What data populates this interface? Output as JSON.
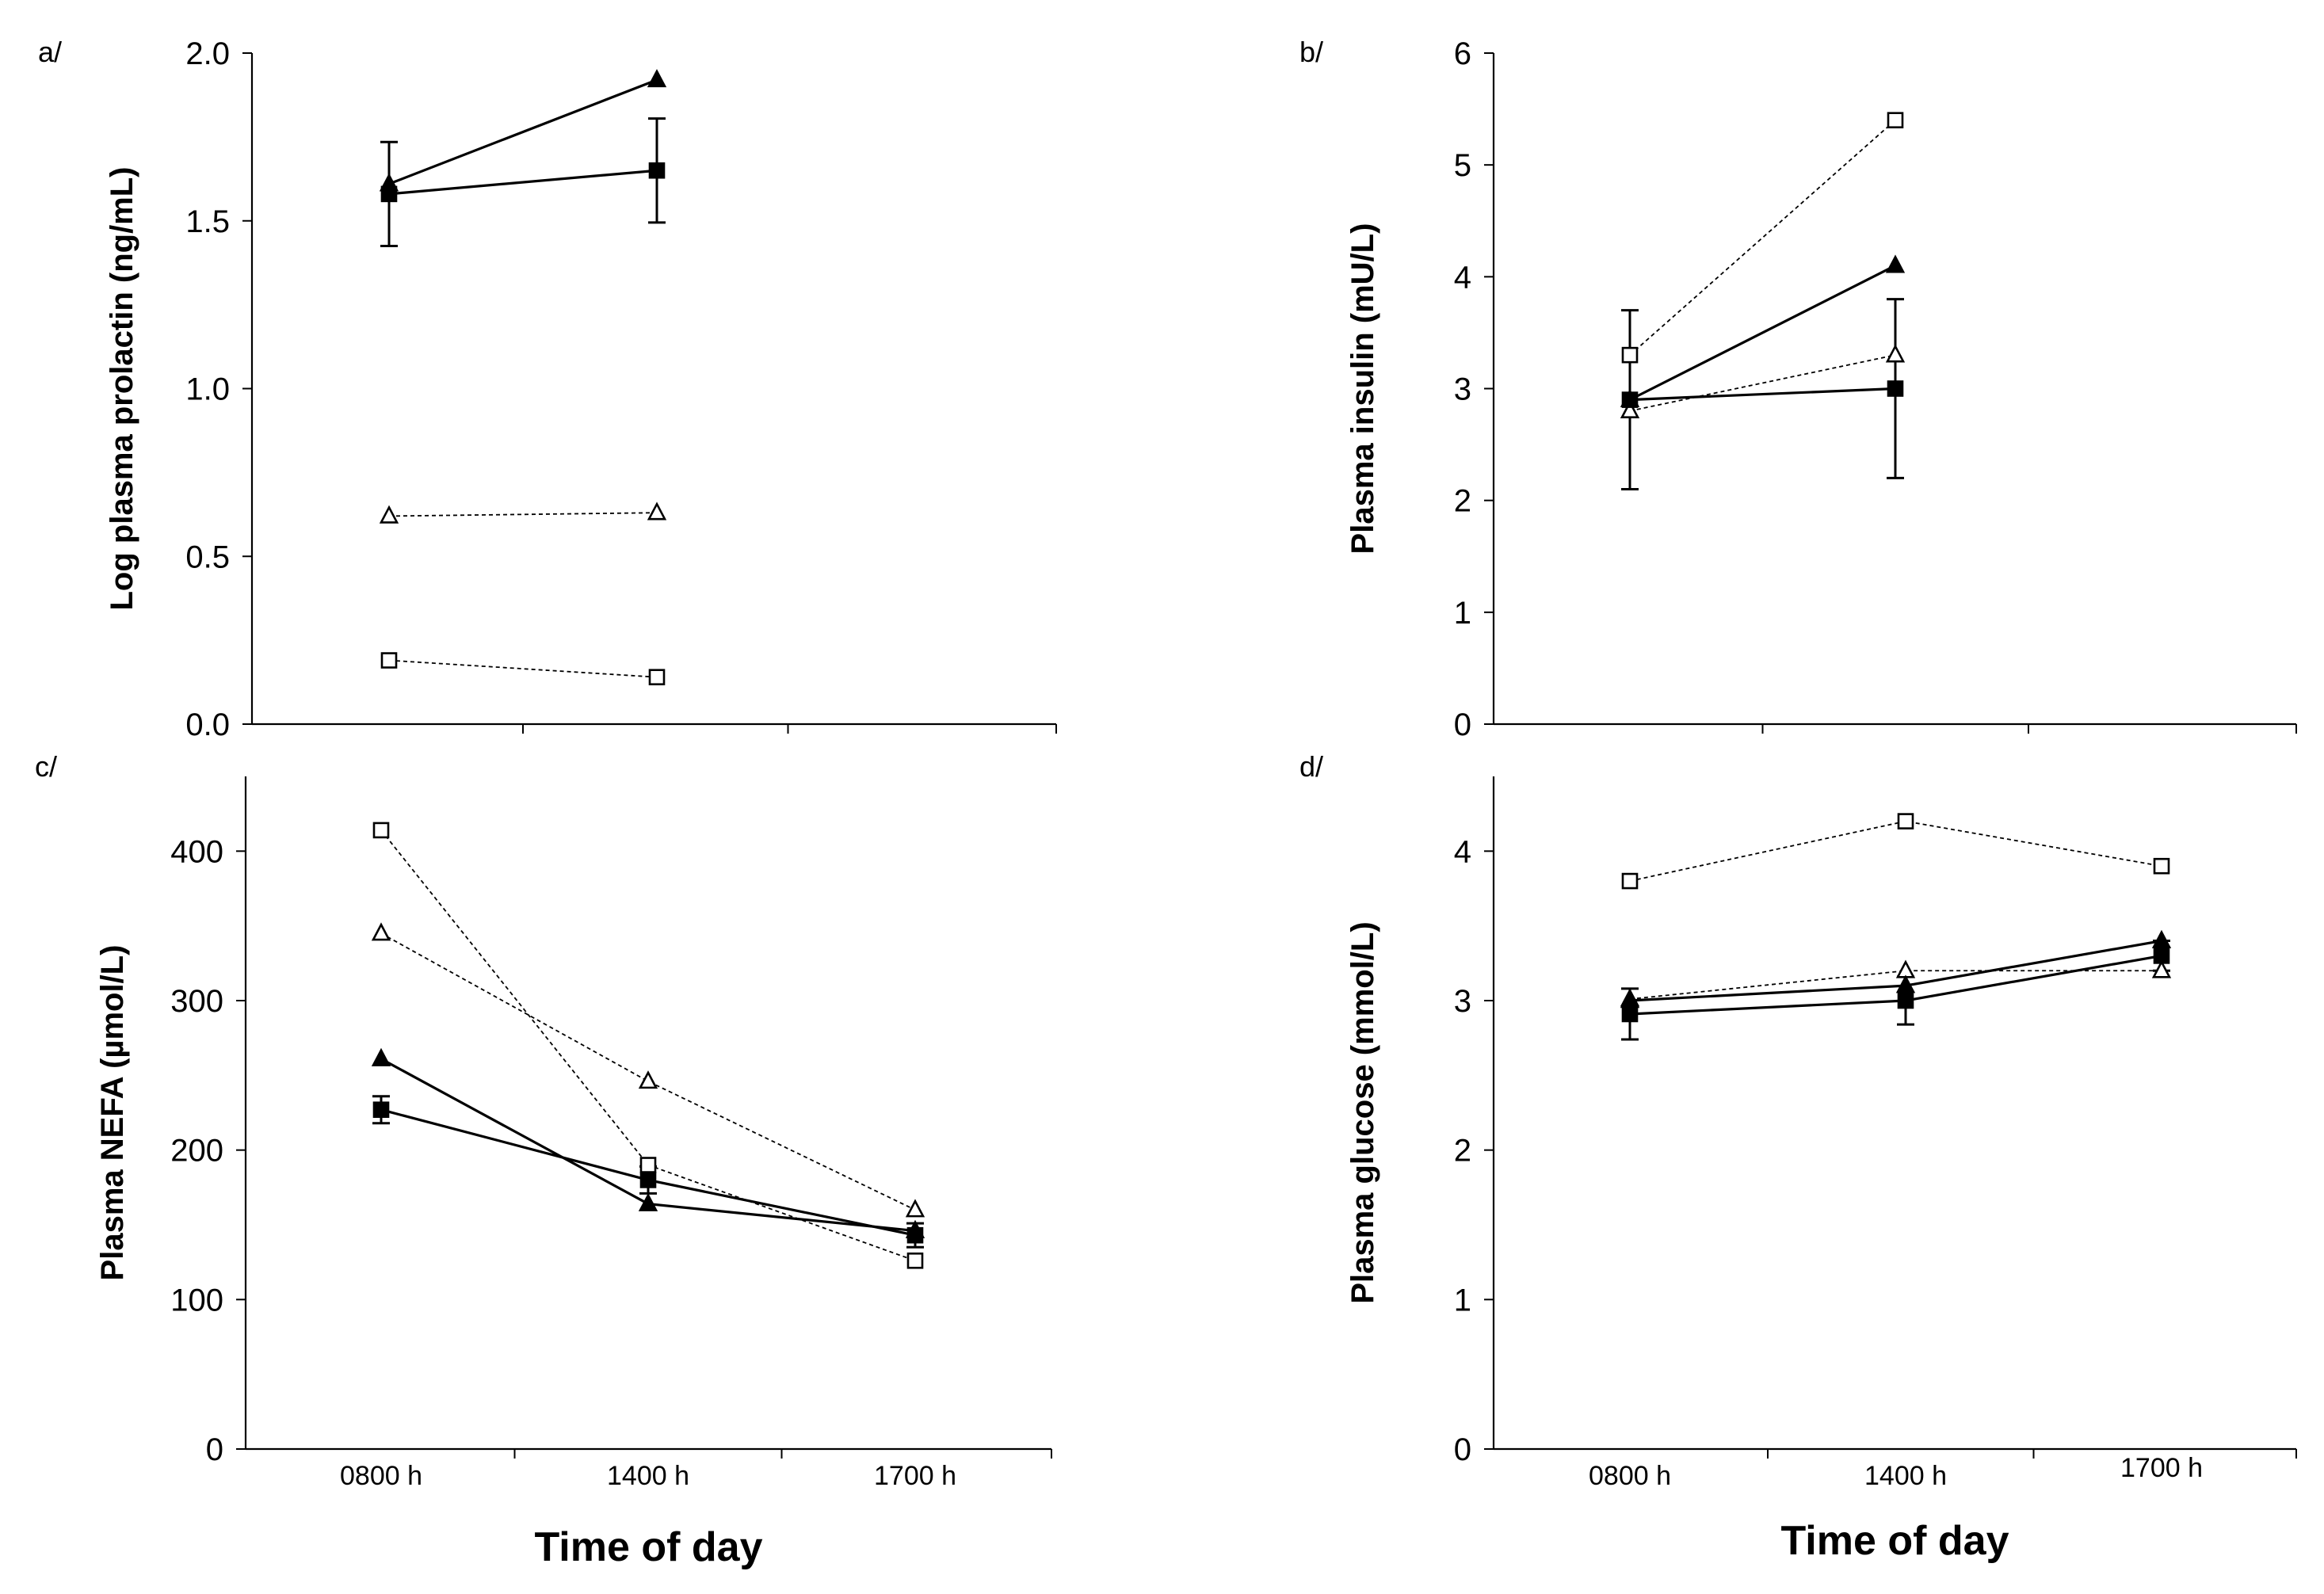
{
  "figure": {
    "x_categories": [
      "0800 h",
      "1400 h",
      "1700 h"
    ],
    "xlabel": "Time of day",
    "colors": {
      "ink": "#000000",
      "open_fill": "#ffffff"
    }
  },
  "chart_data": [
    {
      "id": "a",
      "panel_label": "a/",
      "type": "line",
      "ylabel": "Log plasma prolactin (ng/mL)",
      "ylim": [
        0,
        2.0
      ],
      "yticks": [
        0,
        0.5,
        1.0,
        1.5,
        2.0
      ],
      "ytick_labels": [
        "0.0",
        "0.5",
        "1.0",
        "1.5",
        "2.0"
      ],
      "categories": [
        "0800 h",
        "1400 h",
        "1700 h"
      ],
      "show_xtick_labels": false,
      "show_xlabel": false,
      "series": [
        {
          "name": "filled-square",
          "marker": "square",
          "filled": true,
          "line": "solid",
          "values": [
            1.58,
            1.65,
            null
          ],
          "err": [
            0.155,
            0.155,
            null
          ]
        },
        {
          "name": "filled-triangle",
          "marker": "triangle",
          "filled": true,
          "line": "solid",
          "values": [
            1.61,
            1.92,
            null
          ]
        },
        {
          "name": "open-triangle",
          "marker": "triangle",
          "filled": false,
          "line": "dotted",
          "values": [
            0.62,
            0.63,
            null
          ]
        },
        {
          "name": "open-square",
          "marker": "square",
          "filled": false,
          "line": "dotted",
          "values": [
            0.19,
            0.14,
            null
          ]
        }
      ]
    },
    {
      "id": "b",
      "panel_label": "b/",
      "type": "line",
      "ylabel": "Plasma insulin (mU/L)",
      "ylim": [
        0,
        6
      ],
      "yticks": [
        0,
        1,
        2,
        3,
        4,
        5,
        6
      ],
      "ytick_labels": [
        "0",
        "1",
        "2",
        "3",
        "4",
        "5",
        "6"
      ],
      "categories": [
        "0800 h",
        "1400 h",
        "1700 h"
      ],
      "show_xtick_labels": false,
      "show_xlabel": false,
      "series": [
        {
          "name": "filled-square",
          "marker": "square",
          "filled": true,
          "line": "solid",
          "values": [
            2.9,
            3.0,
            null
          ],
          "err": [
            0.8,
            0.8,
            null
          ]
        },
        {
          "name": "filled-triangle",
          "marker": "triangle",
          "filled": true,
          "line": "solid",
          "values": [
            2.9,
            4.1,
            null
          ]
        },
        {
          "name": "open-triangle",
          "marker": "triangle",
          "filled": false,
          "line": "dotted",
          "values": [
            2.8,
            3.3,
            null
          ]
        },
        {
          "name": "open-square",
          "marker": "square",
          "filled": false,
          "line": "dotted",
          "values": [
            3.3,
            5.4,
            null
          ]
        }
      ]
    },
    {
      "id": "c",
      "panel_label": "c/",
      "type": "line",
      "ylabel": "Plasma NEFA (µmol/L)",
      "ylim": [
        0,
        450
      ],
      "yticks": [
        0,
        100,
        200,
        300,
        400
      ],
      "ytick_labels": [
        "0",
        "100",
        "200",
        "300",
        "400"
      ],
      "categories": [
        "0800 h",
        "1400 h",
        "1700 h"
      ],
      "show_xtick_labels": true,
      "show_xlabel": true,
      "series": [
        {
          "name": "filled-square",
          "marker": "square",
          "filled": true,
          "line": "solid",
          "values": [
            227,
            180,
            143
          ],
          "err": [
            9,
            9,
            8
          ]
        },
        {
          "name": "filled-triangle",
          "marker": "triangle",
          "filled": true,
          "line": "solid",
          "values": [
            261,
            164,
            146
          ]
        },
        {
          "name": "open-triangle",
          "marker": "triangle",
          "filled": false,
          "line": "dotted",
          "values": [
            345,
            246,
            160
          ]
        },
        {
          "name": "open-square",
          "marker": "square",
          "filled": false,
          "line": "dotted",
          "values": [
            414,
            190,
            126
          ]
        }
      ]
    },
    {
      "id": "d",
      "panel_label": "d/",
      "type": "line",
      "ylabel": "Plasma glucose (mmol/L)",
      "ylim": [
        0,
        4.5
      ],
      "yticks": [
        0,
        1,
        2,
        3,
        4
      ],
      "ytick_labels": [
        "0",
        "1",
        "2",
        "3",
        "4"
      ],
      "categories": [
        "0800 h",
        "1400 h",
        "1700 h"
      ],
      "show_xtick_labels": true,
      "show_xlabel": true,
      "series": [
        {
          "name": "filled-square",
          "marker": "square",
          "filled": true,
          "line": "solid",
          "values": [
            2.91,
            3.0,
            3.3
          ],
          "err": [
            0.17,
            0.16,
            0.1
          ]
        },
        {
          "name": "filled-triangle",
          "marker": "triangle",
          "filled": true,
          "line": "solid",
          "values": [
            3.0,
            3.1,
            3.4
          ]
        },
        {
          "name": "open-triangle",
          "marker": "triangle",
          "filled": false,
          "line": "dotted",
          "values": [
            3.01,
            3.2,
            3.2
          ]
        },
        {
          "name": "open-square",
          "marker": "square",
          "filled": false,
          "line": "dotted",
          "values": [
            3.8,
            4.2,
            3.9
          ]
        }
      ]
    }
  ]
}
